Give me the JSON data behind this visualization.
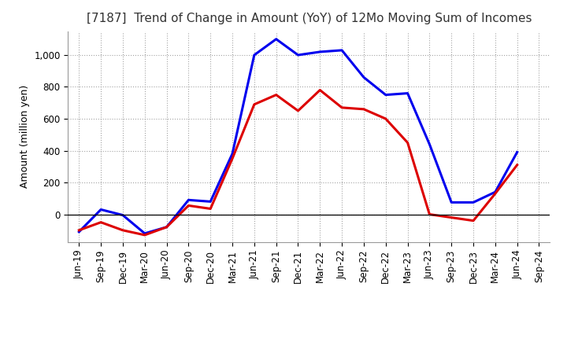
{
  "title": "[7187]  Trend of Change in Amount (YoY) of 12Mo Moving Sum of Incomes",
  "ylabel": "Amount (million yen)",
  "background_color": "#ffffff",
  "grid_color": "#999999",
  "x_labels": [
    "Jun-19",
    "Sep-19",
    "Dec-19",
    "Mar-20",
    "Jun-20",
    "Sep-20",
    "Dec-20",
    "Mar-21",
    "Jun-21",
    "Sep-21",
    "Dec-21",
    "Mar-22",
    "Jun-22",
    "Sep-22",
    "Dec-22",
    "Mar-23",
    "Jun-23",
    "Sep-23",
    "Dec-23",
    "Mar-24",
    "Jun-24",
    "Sep-24"
  ],
  "ordinary_income": [
    -110,
    30,
    -5,
    -120,
    -80,
    90,
    80,
    380,
    1000,
    1100,
    1000,
    1020,
    1030,
    860,
    750,
    760,
    440,
    75,
    75,
    140,
    390,
    null
  ],
  "net_income": [
    -100,
    -50,
    -100,
    -130,
    -80,
    55,
    35,
    350,
    690,
    750,
    650,
    780,
    670,
    660,
    600,
    450,
    0,
    -20,
    -40,
    130,
    310,
    null
  ],
  "ylim": [
    -175,
    1150
  ],
  "yticks": [
    0,
    200,
    400,
    600,
    800,
    1000
  ],
  "ordinary_color": "#0000ee",
  "net_color": "#dd0000",
  "line_width": 2.2,
  "title_fontsize": 11,
  "tick_fontsize": 8.5,
  "ylabel_fontsize": 9
}
